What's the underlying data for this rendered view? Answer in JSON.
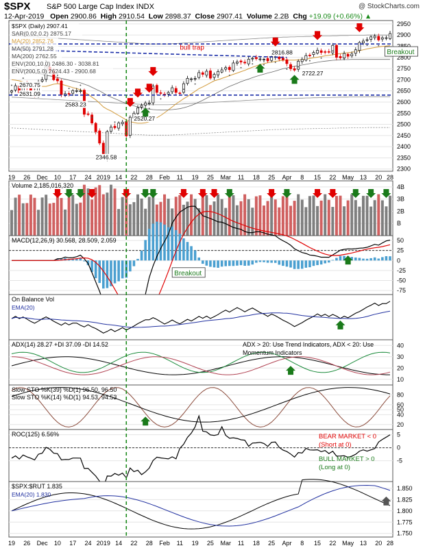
{
  "header": {
    "symbol": "$SPX",
    "description": "S&P 500 Large Cap Index  INDX",
    "copyright": "@ StockCharts.com",
    "date": "12-Apr-2019",
    "open_label": "Open",
    "open": "2900.86",
    "high_label": "High",
    "high": "2910.54",
    "low_label": "Low",
    "low": "2898.37",
    "close_label": "Close",
    "close": "2907.41",
    "volume_label": "Volume",
    "volume": "2.2B",
    "chg_label": "Chg",
    "chg": "+19.09 (+0.66%)",
    "chg_arrow": "▲"
  },
  "colors": {
    "up": "#000000",
    "down": "#e00000",
    "ma20": "#d29a3a",
    "ma50": "#1a1a1a",
    "ma200": "#1a1a1a",
    "env_upper": "#1f3fbf",
    "env200": "#8a8a8a",
    "annot_blue": "#1c2fa8",
    "green_arrow": "#1a7a1a",
    "red_arrow": "#e00000",
    "macd_hist": "#4a9fd0",
    "volume_up": "#7f7f7f",
    "volume_down": "#d06060"
  },
  "chart_data": {
    "type": "line",
    "x_labels": [
      "19",
      "26",
      "Dec",
      "10",
      "17",
      "24",
      "2019",
      "14",
      "22",
      "28",
      "Feb",
      "11",
      "19",
      "25",
      "Mar",
      "11",
      "18",
      "25",
      "Apr",
      "8",
      "15",
      "22",
      "May",
      "13",
      "20",
      "28"
    ],
    "main": {
      "legend": [
        "$SPX (Daily) 2907.41",
        "SAR(0.02,0.2) 2875.17",
        "MA(20) 2852.76",
        "MA(50) 2791.28",
        "MA(200) 2762.55",
        "ENV(200,10.0) 2486.30 - 3038.81",
        "ENV(200,5.0) 2624.43 - 2900.68"
      ],
      "yticks": [
        2300,
        2350,
        2400,
        2450,
        2500,
        2550,
        2600,
        2650,
        2700,
        2750,
        2800,
        2850,
        2900,
        2950
      ],
      "ylim": [
        2290,
        2965
      ],
      "close": [
        2650,
        2673,
        2641,
        2682,
        2663,
        2649,
        2632,
        2690,
        2700,
        2760,
        2740,
        2700,
        2695,
        2633,
        2637,
        2636,
        2651,
        2651,
        2650,
        2545,
        2546,
        2506,
        2467,
        2416,
        2351,
        2468,
        2488,
        2485,
        2506,
        2510,
        2448,
        2532,
        2550,
        2574,
        2585,
        2596,
        2596,
        2671,
        2643,
        2639,
        2633,
        2643,
        2664,
        2643,
        2640,
        2682,
        2706,
        2704,
        2706,
        2732,
        2724,
        2738,
        2707,
        2724,
        2737,
        2744,
        2754,
        2745,
        2775,
        2780,
        2779,
        2775,
        2792,
        2796,
        2794,
        2793,
        2792,
        2784,
        2804,
        2803,
        2793,
        2789,
        2772,
        2749,
        2743,
        2783,
        2791,
        2808,
        2810,
        2822,
        2832,
        2822,
        2825,
        2824,
        2854,
        2800,
        2798,
        2818,
        2805,
        2815,
        2834,
        2867,
        2873,
        2879,
        2892,
        2895,
        2878,
        2888,
        2888,
        2907
      ],
      "ma20": [
        2700,
        2698,
        2695,
        2690,
        2685,
        2680,
        2675,
        2672,
        2670,
        2670,
        2675,
        2680,
        2682,
        2680,
        2675,
        2670,
        2665,
        2660,
        2655,
        2645,
        2635,
        2622,
        2610,
        2595,
        2578,
        2568,
        2560,
        2550,
        2540,
        2530,
        2520,
        2512,
        2508,
        2505,
        2505,
        2507,
        2512,
        2520,
        2530,
        2540,
        2552,
        2565,
        2578,
        2592,
        2603,
        2615,
        2625,
        2637,
        2648,
        2660,
        2668,
        2677,
        2686,
        2695,
        2700,
        2706,
        2712,
        2718,
        2724,
        2730,
        2736,
        2742,
        2749,
        2756,
        2762,
        2768,
        2772,
        2776,
        2779,
        2782,
        2785,
        2787,
        2788,
        2788,
        2788,
        2789,
        2790,
        2792,
        2795,
        2798,
        2801,
        2804,
        2807,
        2809,
        2812,
        2815,
        2817,
        2819,
        2821,
        2823,
        2826,
        2830,
        2834,
        2838,
        2841,
        2844,
        2847,
        2849,
        2851,
        2853
      ],
      "ma50": [
        2760,
        2755,
        2750,
        2745,
        2740,
        2736,
        2732,
        2728,
        2724,
        2720,
        2717,
        2714,
        2710,
        2706,
        2702,
        2698,
        2694,
        2690,
        2686,
        2680,
        2674,
        2666,
        2658,
        2650,
        2640,
        2630,
        2622,
        2615,
        2608,
        2600,
        2594,
        2588,
        2583,
        2578,
        2574,
        2571,
        2568,
        2566,
        2565,
        2564,
        2564,
        2565,
        2566,
        2568,
        2570,
        2574,
        2579,
        2585,
        2592,
        2600,
        2608,
        2617,
        2626,
        2635,
        2644,
        2653,
        2662,
        2670,
        2677,
        2684,
        2691,
        2697,
        2703,
        2709,
        2715,
        2720,
        2725,
        2730,
        2734,
        2739,
        2744,
        2749,
        2753,
        2757,
        2760,
        2763,
        2766,
        2769,
        2772,
        2775,
        2778,
        2781,
        2783,
        2785,
        2787,
        2788,
        2789,
        2790,
        2790,
        2791,
        2791,
        2791,
        2791,
        2791,
        2791,
        2791,
        2791,
        2791,
        2791,
        2791
      ],
      "ma200": [
        2760,
        2759,
        2758,
        2757,
        2756,
        2755,
        2754,
        2753,
        2752,
        2751,
        2750,
        2749,
        2748,
        2747,
        2746,
        2745,
        2744,
        2743,
        2742,
        2741,
        2740,
        2739,
        2738,
        2737,
        2736,
        2735,
        2734,
        2733,
        2732,
        2731,
        2730,
        2729,
        2728,
        2727,
        2726,
        2725,
        2724,
        2724,
        2724,
        2724,
        2724,
        2724,
        2725,
        2726,
        2727,
        2728,
        2729,
        2730,
        2731,
        2732,
        2733,
        2734,
        2735,
        2736,
        2737,
        2738,
        2739,
        2740,
        2741,
        2742,
        2743,
        2744,
        2745,
        2746,
        2747,
        2748,
        2749,
        2750,
        2751,
        2752,
        2752,
        2753,
        2753,
        2754,
        2754,
        2755,
        2755,
        2756,
        2756,
        2757,
        2757,
        2758,
        2758,
        2758,
        2759,
        2759,
        2760,
        2760,
        2760,
        2761,
        2761,
        2761,
        2761,
        2762,
        2762,
        2762,
        2762,
        2762,
        2762,
        2762
      ],
      "annotations": [
        {
          "text": "bull trap",
          "x": 44,
          "y": 2834
        },
        {
          "text": "Breakout",
          "x": 98,
          "y": 2842
        },
        {
          "text": "2670.75",
          "x": 2,
          "y": 2670
        },
        {
          "text": "2631.09",
          "x": 2,
          "y": 2631
        },
        {
          "text": "2583.23",
          "x": 14,
          "y": 2583
        },
        {
          "text": "2520.27",
          "x": 32,
          "y": 2520
        },
        {
          "text": "2346.58",
          "x": 22,
          "y": 2346
        },
        {
          "text": "2816.88",
          "x": 68,
          "y": 2816
        },
        {
          "text": "2722.27",
          "x": 76,
          "y": 2722
        }
      ],
      "hlines": [
        2631,
        2860
      ],
      "trendline": [
        [
          0,
          2835
        ],
        [
          72,
          2800
        ]
      ]
    },
    "volume": {
      "label": "Volume 2,185,016,320",
      "yticks": [
        "B",
        "2B",
        "3B",
        "4B"
      ],
      "ylim": [
        0,
        4.5
      ]
    },
    "macd": {
      "label": "MACD(12,26,9) 30.568, 28.509, 2.059",
      "yticks": [
        -75,
        -50,
        -25,
        0,
        25,
        50
      ],
      "ylim": [
        -85,
        62
      ],
      "annotation": "Breakout"
    },
    "obv": {
      "label": "On Balance Vol",
      "ema_label": "EMA(20)"
    },
    "adx": {
      "label": "ADX(14) 28.27 +DI 37.09 -DI 14.52",
      "note1": "ADX > 20: Use Trend Indicators, ADX < 20: Use",
      "note2": "Momentum Indicators",
      "yticks": [
        10,
        20,
        30,
        40
      ],
      "ylim": [
        5,
        45
      ]
    },
    "sto": {
      "label1": "Slow STO %K(39) %D(1) 96.50, 96.50",
      "label2": "Slow STO %K(14) %D(1) 94.53, 94.53",
      "yticks": [
        20,
        40,
        50,
        60,
        80
      ],
      "ylim": [
        10,
        100
      ]
    },
    "roc": {
      "label": "ROC(125) 6.56%",
      "bear1": "BEAR MARKET < 0",
      "bear2": "(Short at 0)",
      "bull1": "BULL MARKET > 0",
      "bull2": "(Long at 0)",
      "yticks": [
        -5,
        0,
        5
      ],
      "ylim": [
        -13,
        7
      ]
    },
    "ratio": {
      "label": "$SPX:$RUT 1.835",
      "ema_label": "EMA(20) 1.830",
      "yticks": [
        1.75,
        1.775,
        1.8,
        1.825,
        1.85
      ],
      "ylim": [
        1.742,
        1.865
      ]
    }
  }
}
